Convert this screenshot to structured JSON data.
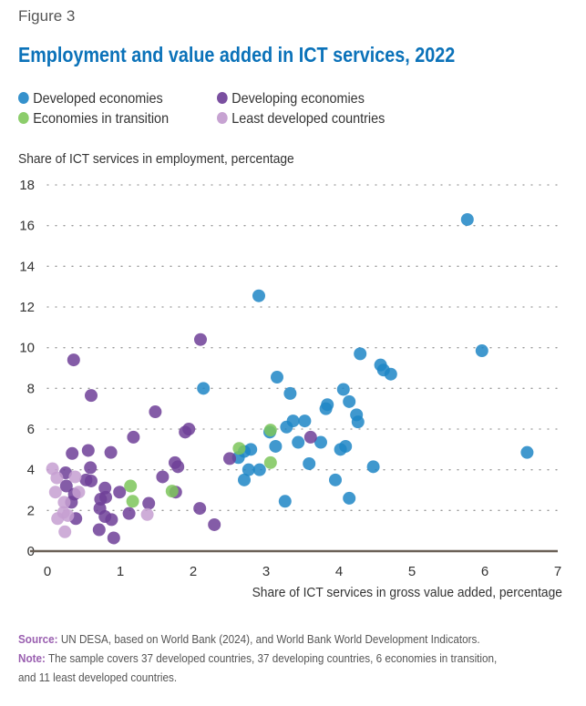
{
  "figure_label": "Figure 3",
  "title": "Employment and value added in ICT services, 2022",
  "source_label": "Source:",
  "source_text": "UN DESA, based on World Bank (2024), and World Bank World Development Indicators.",
  "note_label": "Note:",
  "note_line1": "The sample covers 37 developed countries, 37 developing countries, 6 economies in transition,",
  "note_line2": "and 11 least developed countries.",
  "chart_data": {
    "type": "scatter",
    "xlabel": "Share of ICT services in gross value added, percentage",
    "ylabel": "Share of ICT services in employment, percentage",
    "xlim": [
      0,
      7
    ],
    "ylim": [
      0,
      18
    ],
    "xticks": [
      "0",
      "1",
      "2",
      "3",
      "4",
      "5",
      "6",
      "7"
    ],
    "yticks": [
      "0",
      "2",
      "4",
      "6",
      "8",
      "10",
      "12",
      "14",
      "16",
      "18"
    ],
    "grid": "horizontal dotted",
    "legend_position": "top",
    "series": [
      {
        "name": "Developed economies",
        "color": "#1f86c6",
        "points": [
          [
            5.76,
            16.3
          ],
          [
            2.9,
            12.55
          ],
          [
            5.96,
            9.85
          ],
          [
            2.14,
            8.0
          ],
          [
            4.29,
            9.7
          ],
          [
            4.57,
            9.15
          ],
          [
            4.61,
            8.9
          ],
          [
            4.71,
            8.7
          ],
          [
            3.15,
            8.55
          ],
          [
            3.33,
            7.75
          ],
          [
            4.06,
            7.95
          ],
          [
            4.14,
            7.35
          ],
          [
            3.84,
            7.2
          ],
          [
            3.82,
            7.0
          ],
          [
            4.24,
            6.7
          ],
          [
            4.26,
            6.35
          ],
          [
            3.37,
            6.4
          ],
          [
            3.53,
            6.4
          ],
          [
            3.28,
            6.1
          ],
          [
            3.05,
            5.85
          ],
          [
            3.75,
            5.35
          ],
          [
            3.44,
            5.35
          ],
          [
            3.13,
            5.15
          ],
          [
            4.09,
            5.15
          ],
          [
            4.02,
            5.0
          ],
          [
            2.79,
            5.0
          ],
          [
            2.7,
            4.9
          ],
          [
            2.62,
            4.6
          ],
          [
            3.59,
            4.3
          ],
          [
            4.47,
            4.15
          ],
          [
            2.76,
            4.0
          ],
          [
            2.91,
            4.0
          ],
          [
            2.7,
            3.5
          ],
          [
            3.95,
            3.5
          ],
          [
            3.26,
            2.45
          ],
          [
            4.14,
            2.6
          ],
          [
            6.58,
            4.85
          ]
        ]
      },
      {
        "name": "Developing economies",
        "color": "#6e3f98",
        "points": [
          [
            2.1,
            10.4
          ],
          [
            0.36,
            9.4
          ],
          [
            0.6,
            7.65
          ],
          [
            1.48,
            6.85
          ],
          [
            1.94,
            6.0
          ],
          [
            1.89,
            5.85
          ],
          [
            1.18,
            5.6
          ],
          [
            0.34,
            4.8
          ],
          [
            0.56,
            4.95
          ],
          [
            0.87,
            4.85
          ],
          [
            1.75,
            4.35
          ],
          [
            1.79,
            4.15
          ],
          [
            0.25,
            3.85
          ],
          [
            0.59,
            4.1
          ],
          [
            0.53,
            3.5
          ],
          [
            0.6,
            3.45
          ],
          [
            1.58,
            3.65
          ],
          [
            0.26,
            3.2
          ],
          [
            0.79,
            3.1
          ],
          [
            0.99,
            2.9
          ],
          [
            1.76,
            2.9
          ],
          [
            0.37,
            2.8
          ],
          [
            0.8,
            2.65
          ],
          [
            0.73,
            2.55
          ],
          [
            0.33,
            2.4
          ],
          [
            1.39,
            2.35
          ],
          [
            0.72,
            2.1
          ],
          [
            2.09,
            2.1
          ],
          [
            0.79,
            1.7
          ],
          [
            0.88,
            1.55
          ],
          [
            1.12,
            1.85
          ],
          [
            0.39,
            1.6
          ],
          [
            0.71,
            1.05
          ],
          [
            0.91,
            0.65
          ],
          [
            2.29,
            1.3
          ],
          [
            3.61,
            5.6
          ],
          [
            2.5,
            4.55
          ]
        ]
      },
      {
        "name": "Economies in transition",
        "color": "#7cc65a",
        "points": [
          [
            2.63,
            5.05
          ],
          [
            3.06,
            5.95
          ],
          [
            3.06,
            4.35
          ],
          [
            1.71,
            2.95
          ],
          [
            1.14,
            3.2
          ],
          [
            1.17,
            2.45
          ]
        ]
      },
      {
        "name": "Least developed countries",
        "color": "#c59fd1",
        "points": [
          [
            0.07,
            4.05
          ],
          [
            0.13,
            3.6
          ],
          [
            0.38,
            3.65
          ],
          [
            0.11,
            2.9
          ],
          [
            0.43,
            2.9
          ],
          [
            0.23,
            2.4
          ],
          [
            0.22,
            1.9
          ],
          [
            0.28,
            1.75
          ],
          [
            0.14,
            1.6
          ],
          [
            0.24,
            0.95
          ],
          [
            1.37,
            1.8
          ]
        ]
      }
    ]
  }
}
